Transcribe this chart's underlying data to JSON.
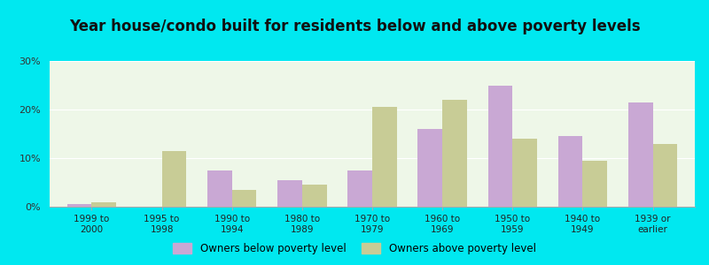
{
  "title": "Year house/condo built for residents below and above poverty levels",
  "categories": [
    "1999 to\n2000",
    "1995 to\n1998",
    "1990 to\n1994",
    "1980 to\n1989",
    "1970 to\n1979",
    "1960 to\n1969",
    "1950 to\n1959",
    "1940 to\n1949",
    "1939 or\nearlier"
  ],
  "below_poverty": [
    0.5,
    0.0,
    7.5,
    5.5,
    7.5,
    16.0,
    25.0,
    14.5,
    21.5
  ],
  "above_poverty": [
    1.0,
    11.5,
    3.5,
    4.5,
    20.5,
    22.0,
    14.0,
    9.5,
    13.0
  ],
  "below_color": "#c9a8d4",
  "above_color": "#c8cc96",
  "background_outer": "#00e8f0",
  "background_inner_top": "#e8f5e0",
  "background_inner_bottom": "#ffffff",
  "ylim": [
    0,
    30
  ],
  "yticks": [
    0,
    10,
    20,
    30
  ],
  "ytick_labels": [
    "0%",
    "10%",
    "20%",
    "30%"
  ],
  "legend_below": "Owners below poverty level",
  "legend_above": "Owners above poverty level",
  "title_fontsize": 12,
  "bar_width": 0.35
}
